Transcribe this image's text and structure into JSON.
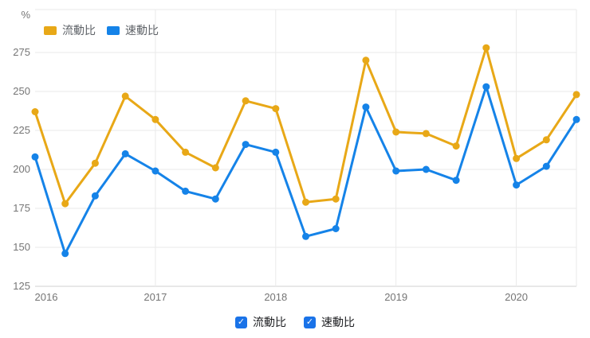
{
  "unit_label": "%",
  "top_legend": [
    {
      "label": "流動比",
      "color": "#E8A817",
      "name": "current-ratio"
    },
    {
      "label": "速動比",
      "color": "#1583E8",
      "name": "quick-ratio"
    }
  ],
  "bottom_controls": {
    "checkbox_color": "#1A73E8",
    "check_glyph": "✓",
    "items": [
      {
        "label": "流動比",
        "checked": true,
        "name": "current-ratio"
      },
      {
        "label": "速動比",
        "checked": true,
        "name": "quick-ratio"
      }
    ]
  },
  "chart_data": {
    "type": "line",
    "unit": "%",
    "title": "",
    "categories": [
      "2016 Q1",
      "2016 Q2",
      "2016 Q3",
      "2016 Q4",
      "2017 Q1",
      "2017 Q2",
      "2017 Q3",
      "2017 Q4",
      "2018 Q1",
      "2018 Q2",
      "2018 Q3",
      "2018 Q4",
      "2019 Q1",
      "2019 Q2",
      "2019 Q3",
      "2019 Q4",
      "2020 Q1",
      "2020 Q2",
      "2020 Q3"
    ],
    "series": [
      {
        "name": "流動比",
        "color": "#E8A817",
        "values": [
          237,
          178,
          204,
          247,
          232,
          211,
          201,
          244,
          239,
          179,
          181,
          270,
          224,
          223,
          215,
          278,
          207,
          219,
          248
        ]
      },
      {
        "name": "速動比",
        "color": "#1583E8",
        "values": [
          208,
          146,
          183,
          210,
          199,
          186,
          181,
          216,
          211,
          157,
          162,
          240,
          199,
          200,
          193,
          253,
          190,
          202,
          232
        ]
      }
    ],
    "yticks": [
      125,
      150,
      175,
      200,
      225,
      250,
      275
    ],
    "ylim": [
      125,
      302
    ],
    "x_year_ticks": [
      {
        "label": "2016",
        "index": 0
      },
      {
        "label": "2017",
        "index": 4
      },
      {
        "label": "2018",
        "index": 8
      },
      {
        "label": "2019",
        "index": 12
      },
      {
        "label": "2020",
        "index": 16
      }
    ],
    "grid": true,
    "legend_position": "top"
  },
  "colors": {
    "background": "#FFFFFF",
    "gridline": "#EAEAEA",
    "axis_line": "#D2D2D2",
    "tick_text": "#757575"
  }
}
